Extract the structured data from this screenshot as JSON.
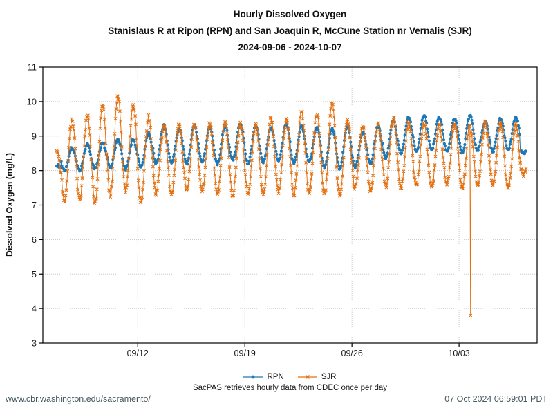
{
  "caption": "SacPAS retrieves hourly data from CDEC once per day",
  "footer": {
    "left": "www.cbr.washington.edu/sacramento/",
    "right": "07 Oct 2024 06:59:01 PDT"
  },
  "chart_data": {
    "type": "line",
    "title": "Hourly Dissolved Oxygen",
    "subtitle": "Stanislaus R at Ripon (RPN) and San Joaquin R, McCune Station nr Vernalis (SJR)",
    "period": "2024-09-06 - 2024-10-07",
    "xlabel": "",
    "ylabel": "Dissolved Oxygen (mg/L)",
    "ylim": [
      3,
      11
    ],
    "yticks": [
      3,
      4,
      5,
      6,
      7,
      8,
      9,
      10,
      11
    ],
    "xticks": [
      {
        "label": "09/12",
        "day_offset": 6
      },
      {
        "label": "09/19",
        "day_offset": 13
      },
      {
        "label": "09/26",
        "day_offset": 20
      },
      {
        "label": "10/03",
        "day_offset": 27
      }
    ],
    "x_start_date": "2024-09-06",
    "x_end_date": "2024-10-07",
    "sampling": "hourly",
    "grid": true,
    "legend_position": "bottom",
    "dates": [
      "09/06",
      "09/07",
      "09/08",
      "09/09",
      "09/10",
      "09/11",
      "09/12",
      "09/13",
      "09/14",
      "09/15",
      "09/16",
      "09/17",
      "09/18",
      "09/19",
      "09/20",
      "09/21",
      "09/22",
      "09/23",
      "09/24",
      "09/25",
      "09/26",
      "09/27",
      "09/28",
      "09/29",
      "09/30",
      "10/01",
      "10/02",
      "10/03",
      "10/04",
      "10/05",
      "10/06",
      "10/07"
    ],
    "diurnal_cycle": {
      "min_hour": 5,
      "max_hour": 17
    },
    "first_day_start_hour": 17,
    "last_day_end_hour": 9,
    "series": [
      {
        "name": "RPN",
        "color": "#1f77b4",
        "marker": "circle",
        "noise": 0.035,
        "seed": 9,
        "daily_min": [
          8.05,
          8.0,
          8.0,
          8.05,
          8.1,
          8.05,
          8.1,
          8.2,
          8.25,
          8.2,
          8.25,
          8.2,
          8.3,
          8.2,
          8.25,
          8.3,
          8.2,
          8.25,
          8.1,
          8.05,
          8.1,
          8.2,
          8.35,
          8.5,
          8.55,
          8.6,
          8.55,
          8.5,
          8.6,
          8.55,
          8.6,
          8.5
        ],
        "daily_max": [
          8.15,
          8.65,
          8.75,
          8.8,
          8.9,
          8.9,
          9.1,
          9.3,
          9.2,
          9.3,
          9.25,
          9.3,
          9.35,
          9.3,
          9.25,
          9.35,
          9.3,
          9.25,
          9.2,
          9.3,
          9.1,
          9.3,
          9.45,
          9.55,
          9.6,
          9.55,
          9.5,
          9.6,
          9.4,
          9.5,
          9.55,
          8.75
        ],
        "outliers": []
      },
      {
        "name": "SJR",
        "color": "#e36f0e",
        "marker": "x",
        "noise": 0.07,
        "seed": 77,
        "daily_min": [
          7.3,
          7.1,
          7.15,
          7.05,
          7.3,
          7.4,
          7.1,
          7.35,
          7.3,
          7.45,
          7.4,
          7.35,
          7.3,
          7.35,
          7.3,
          7.4,
          7.3,
          7.35,
          7.3,
          7.3,
          7.5,
          7.4,
          7.55,
          7.5,
          7.55,
          7.5,
          7.6,
          7.5,
          7.55,
          7.6,
          7.5,
          7.9
        ],
        "daily_max": [
          8.6,
          9.5,
          9.6,
          9.9,
          10.15,
          9.9,
          9.55,
          9.3,
          9.35,
          9.3,
          9.35,
          9.4,
          9.35,
          9.3,
          9.5,
          9.45,
          9.7,
          9.65,
          9.95,
          9.45,
          9.3,
          9.35,
          9.5,
          9.4,
          9.35,
          9.3,
          9.35,
          9.3,
          9.4,
          9.35,
          9.3,
          8.6
        ],
        "outliers": [
          {
            "date": "10/03",
            "hour": 18,
            "value": 3.8
          }
        ]
      }
    ]
  }
}
